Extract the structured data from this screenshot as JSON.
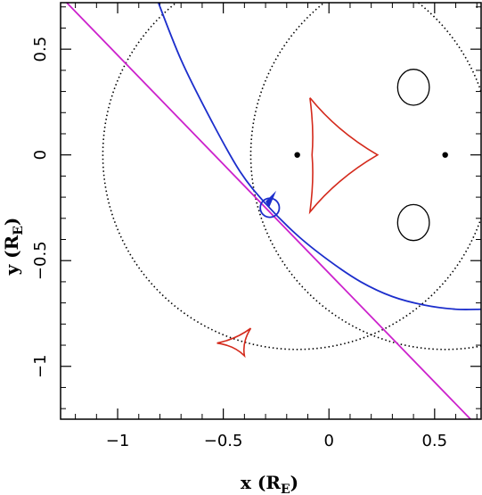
{
  "chart_data": {
    "type": "line",
    "title": "",
    "xlabel": {
      "main": "x (R",
      "sub": "E",
      "close": ")"
    },
    "ylabel": {
      "main": "y (R",
      "sub": "E",
      "close": ")"
    },
    "xlim": [
      -1.27,
      0.72
    ],
    "ylim": [
      -1.25,
      0.72
    ],
    "x_ticks": [
      {
        "value": -1,
        "label": "−1"
      },
      {
        "value": -0.5,
        "label": "−0.5"
      },
      {
        "value": 0,
        "label": "0"
      },
      {
        "value": 0.5,
        "label": "0.5"
      }
    ],
    "y_ticks": [
      {
        "value": 0.5,
        "label": "0.5"
      },
      {
        "value": 0,
        "label": "0"
      },
      {
        "value": -0.5,
        "label": "−0.5"
      },
      {
        "value": -1,
        "label": "−1"
      }
    ],
    "minor_tick_step": 0.1,
    "grid": false,
    "lenses": [
      {
        "x": -0.15,
        "y": 0.0
      },
      {
        "x": 0.55,
        "y": 0.0
      }
    ],
    "einstein_ring": {
      "cx": -0.15,
      "cy": 0.0,
      "r": 0.92
    },
    "second_ring": {
      "cx": 0.55,
      "cy": 0.0,
      "r": 0.92
    },
    "critical_loops": [
      {
        "cx": 0.4,
        "cy": 0.32,
        "rx": 0.075,
        "ry": 0.085
      },
      {
        "cx": 0.4,
        "cy": -0.32,
        "rx": 0.075,
        "ry": 0.085
      }
    ],
    "caustics": [
      {
        "name": "central caustic",
        "color": "#d42a1c",
        "points": [
          [
            -0.09,
            0.27
          ],
          [
            -0.07,
            0.12
          ],
          [
            -0.08,
            0.0
          ],
          [
            -0.07,
            -0.12
          ],
          [
            -0.09,
            -0.27
          ],
          [
            0.04,
            -0.11
          ],
          [
            0.23,
            0.0
          ],
          [
            0.04,
            0.11
          ]
        ]
      },
      {
        "name": "outer caustic",
        "color": "#d42a1c",
        "points": [
          [
            -0.53,
            -0.89
          ],
          [
            -0.37,
            -0.82
          ],
          [
            -0.4,
            -0.95
          ]
        ]
      }
    ],
    "source_circle": {
      "cx": -0.28,
      "cy": -0.25,
      "r": 0.045
    },
    "series": [
      {
        "color": "#1c2ecc",
        "points": [
          [
            -0.83,
            0.78
          ],
          [
            -0.7,
            0.45
          ],
          [
            -0.55,
            0.15
          ],
          [
            -0.42,
            -0.08
          ],
          [
            -0.3,
            -0.23
          ],
          [
            -0.15,
            -0.38
          ],
          [
            0.0,
            -0.5
          ],
          [
            0.15,
            -0.6
          ],
          [
            0.3,
            -0.67
          ],
          [
            0.45,
            -0.71
          ],
          [
            0.6,
            -0.73
          ],
          [
            0.72,
            -0.73
          ]
        ]
      },
      {
        "color": "#cc22cc",
        "points": [
          [
            -1.27,
            0.75
          ],
          [
            0.67,
            -1.25
          ]
        ]
      }
    ],
    "arrow": {
      "x": -0.3,
      "y": -0.22,
      "color": "#1c2ecc"
    }
  }
}
